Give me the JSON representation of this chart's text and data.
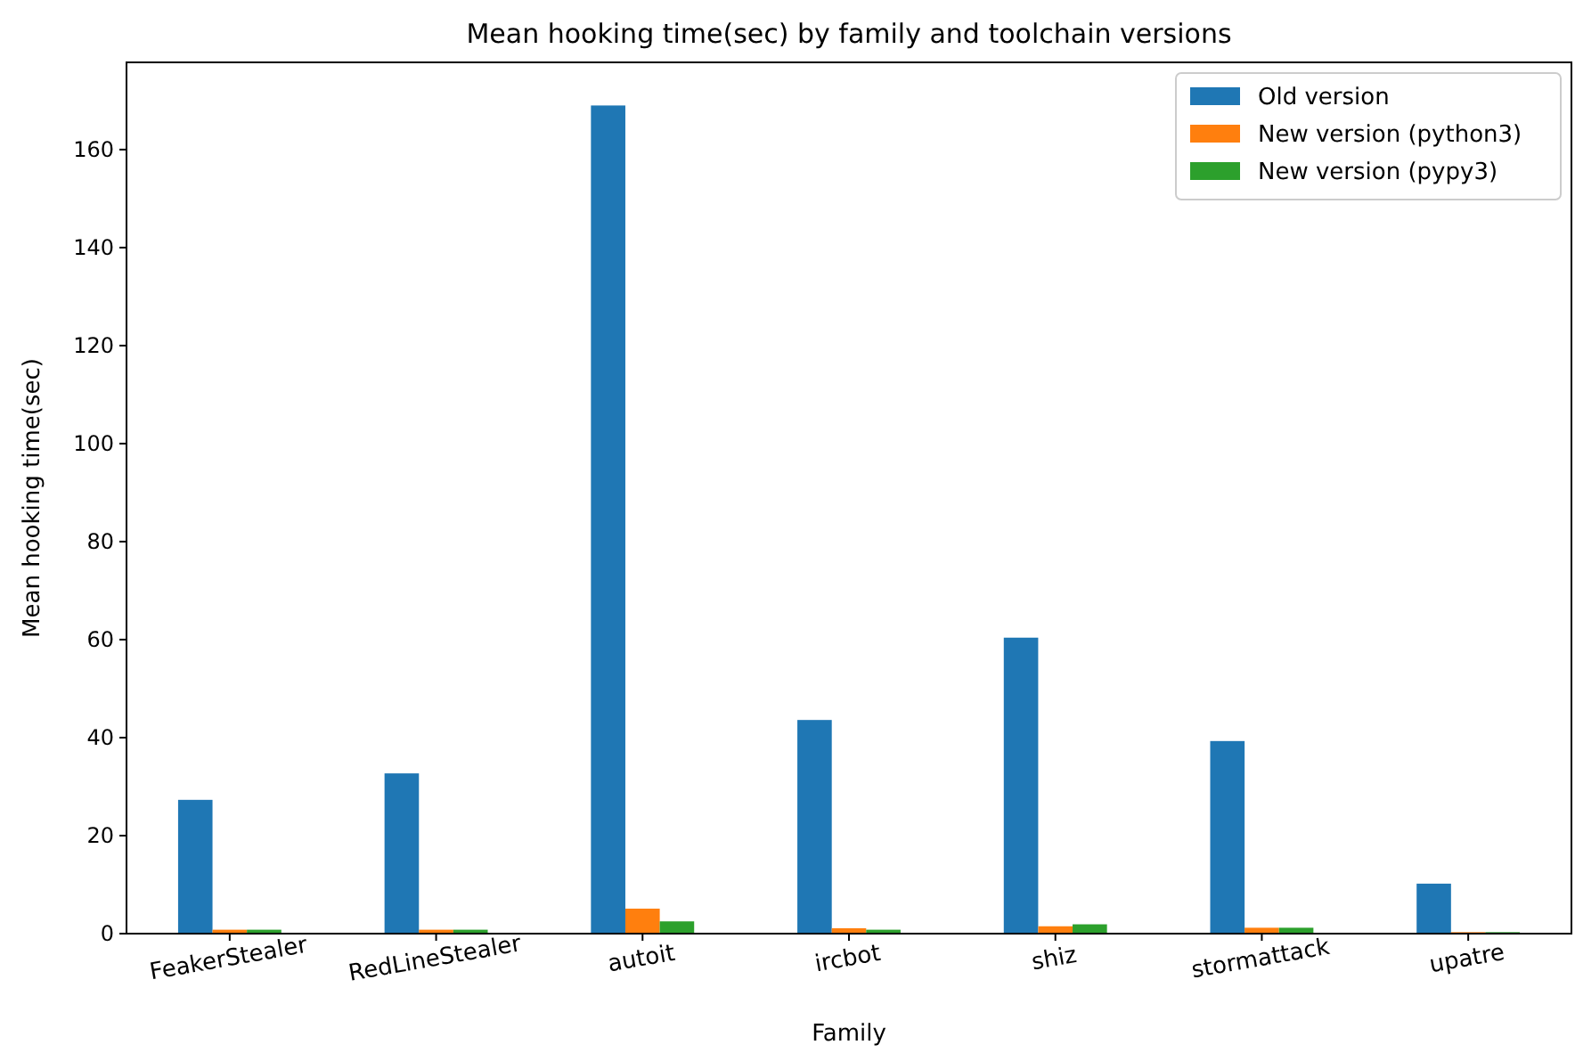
{
  "chart_data": {
    "type": "bar",
    "title": "Mean hooking time(sec) by family and toolchain versions",
    "xlabel": "Family",
    "ylabel": "Mean hooking time(sec)",
    "categories": [
      "FeakerStealer",
      "RedLineStealer",
      "autoit",
      "ircbot",
      "shiz",
      "stormattack",
      "upatre"
    ],
    "series": [
      {
        "name": "Old version",
        "color": "#1f77b4",
        "values": [
          27.3,
          32.7,
          169,
          43.6,
          60.4,
          39.3,
          10.2
        ]
      },
      {
        "name": "New version (python3)",
        "color": "#ff7f0e",
        "values": [
          0.8,
          0.8,
          5.1,
          1.1,
          1.5,
          1.2,
          0.3
        ]
      },
      {
        "name": "New version (pypy3)",
        "color": "#2ca02c",
        "values": [
          0.8,
          0.8,
          2.5,
          0.8,
          1.9,
          1.2,
          0.3
        ]
      }
    ],
    "ylim": [
      0,
      177.8
    ],
    "yticks": [
      0,
      20,
      40,
      60,
      80,
      100,
      120,
      140,
      160
    ],
    "grid": false,
    "legend": "top right"
  }
}
